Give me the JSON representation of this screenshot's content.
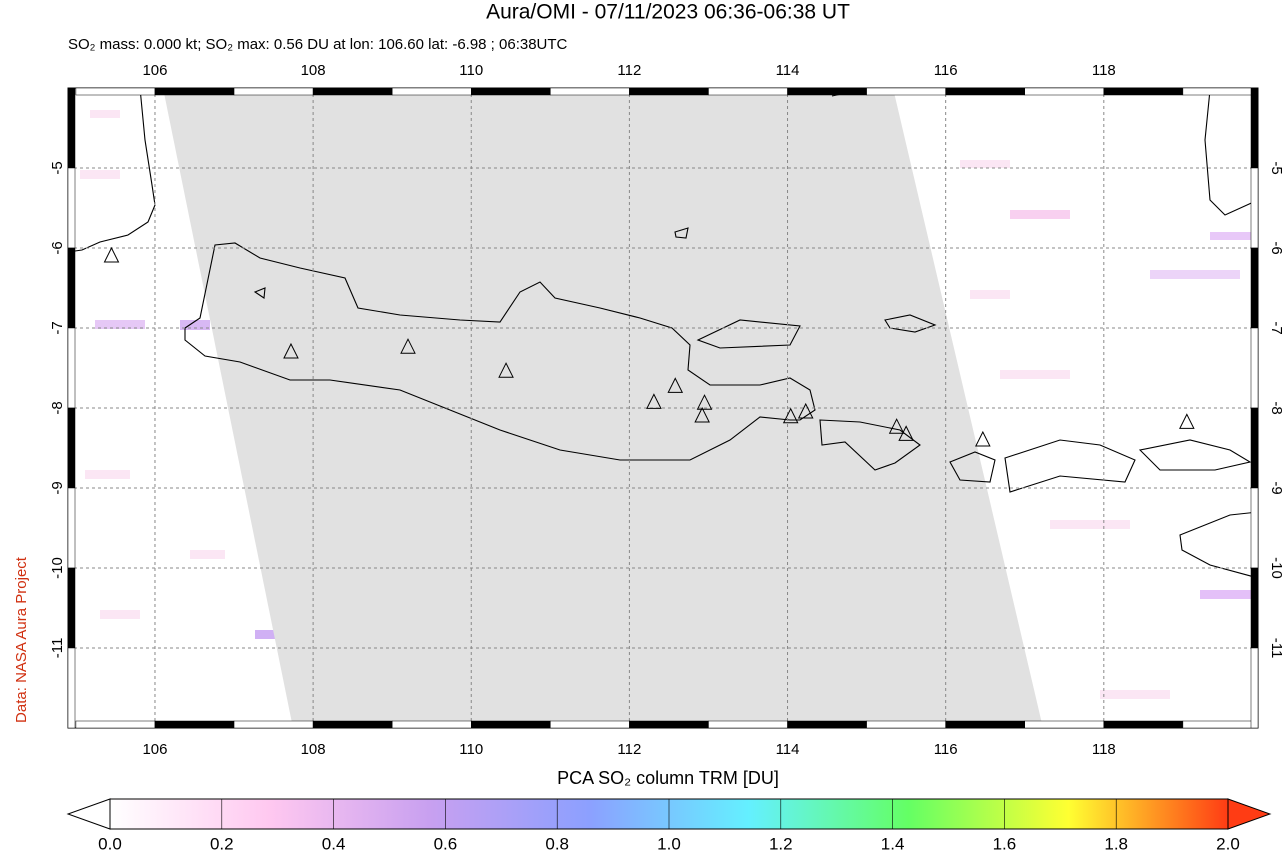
{
  "header": {
    "title": "Aura/OMI - 07/11/2023 06:36-06:38 UT",
    "subtitle": "SO₂ mass: 0.000 kt; SO₂ max: 0.56 DU at lon: 106.60 lat: -6.98 ; 06:38UTC"
  },
  "credit": "Data: NASA Aura Project",
  "map": {
    "xlim": [
      104.9,
      119.95
    ],
    "ylim": [
      -12,
      -4
    ],
    "xticks": [
      106,
      108,
      110,
      112,
      114,
      116,
      118
    ],
    "yticks": [
      -5,
      -6,
      -7,
      -8,
      -9,
      -10,
      -11
    ],
    "grid": true,
    "volcanoes": [
      [
        105.45,
        -6.1
      ],
      [
        107.72,
        -7.3
      ],
      [
        109.2,
        -7.24
      ],
      [
        110.44,
        -7.54
      ],
      [
        112.31,
        -7.93
      ],
      [
        112.58,
        -7.73
      ],
      [
        112.95,
        -7.94
      ],
      [
        112.92,
        -8.1
      ],
      [
        114.04,
        -8.11
      ],
      [
        114.23,
        -8.05
      ],
      [
        115.38,
        -8.24
      ],
      [
        115.5,
        -8.33
      ],
      [
        116.47,
        -8.4
      ],
      [
        119.05,
        -8.18
      ]
    ]
  },
  "colorbar": {
    "label": "PCA SO₂ column TRM [DU]",
    "lim": [
      0,
      2
    ],
    "ticks": [
      {
        "value": 0,
        "label": "0.0"
      },
      0.2,
      0.4,
      0.6,
      0.8,
      {
        "value": 1,
        "label": "1.0"
      },
      1.2,
      1.4,
      1.6,
      1.8,
      {
        "value": 2,
        "label": "2.0"
      }
    ],
    "colors": [
      "#ffffff",
      "#ffc8f0",
      "#c8a0f0",
      "#8ca0ff",
      "#64f0ff",
      "#64ff64",
      "#ffff32",
      "#ff3c14"
    ]
  }
}
